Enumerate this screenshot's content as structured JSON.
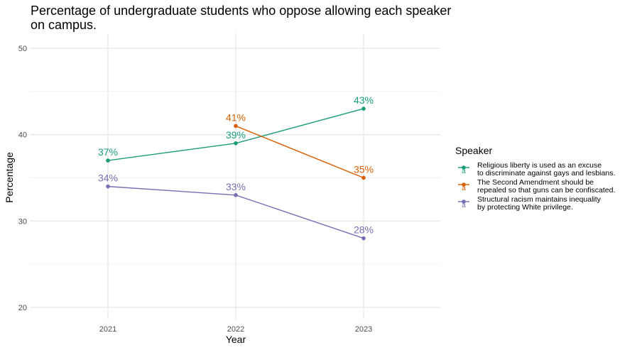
{
  "chart_data": {
    "type": "line",
    "title": "Percentage of undergraduate students who oppose allowing each speaker on campus.",
    "title_lines": [
      "Percentage of undergraduate students who oppose allowing each speaker",
      "on campus."
    ],
    "xlabel": "Year",
    "ylabel": "Percentage",
    "categories": [
      "2021",
      "2022",
      "2023"
    ],
    "y_ticks": [
      20,
      30,
      40,
      50
    ],
    "ylim": [
      19.5,
      51
    ],
    "grid": true,
    "legend_title": "Speaker",
    "legend_position": "right",
    "series": [
      {
        "name": "Religious liberty is used as an excuse to discriminate against gays and lesbians.",
        "name_lines": [
          "Religious liberty is used as an excuse",
          "to discriminate against gays and lesbians."
        ],
        "color": "#1b9e77",
        "x": [
          "2021",
          "2022",
          "2023"
        ],
        "values": [
          37,
          39,
          43
        ],
        "labels": [
          "37%",
          "39%",
          "43%"
        ]
      },
      {
        "name": "The Second Amendment should be repealed so that guns can be confiscated.",
        "name_lines": [
          "The Second Amendment should be",
          "repealed so that guns can be confiscated."
        ],
        "color": "#d95f02",
        "x": [
          "2022",
          "2023"
        ],
        "values": [
          41,
          35
        ],
        "labels": [
          "41%",
          "35%"
        ]
      },
      {
        "name": "Structural racism maintains inequality by protecting White privilege.",
        "name_lines": [
          "Structural racism maintains inequality",
          "by protecting White privilege."
        ],
        "color": "#7570b3",
        "x": [
          "2021",
          "2022",
          "2023"
        ],
        "values": [
          34,
          33,
          28
        ],
        "labels": [
          "34%",
          "33%",
          "28%"
        ]
      }
    ]
  }
}
